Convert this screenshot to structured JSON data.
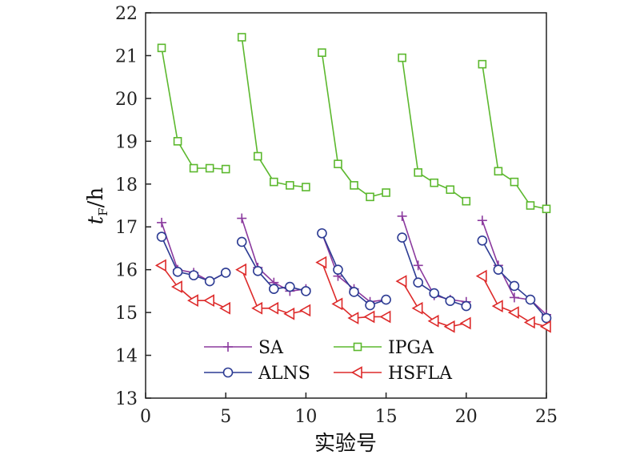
{
  "chart_data": {
    "type": "line",
    "xlabel": "实验号",
    "ylabel_main": "t",
    "ylabel_sub": "F",
    "ylabel_suffix": "/h",
    "xlim": [
      0,
      25
    ],
    "ylim": [
      13,
      22
    ],
    "xticks": [
      0,
      5,
      10,
      15,
      20,
      25
    ],
    "yticks": [
      13,
      14,
      15,
      16,
      17,
      18,
      19,
      20,
      21,
      22
    ],
    "grid": false,
    "legend_position": "bottom-center",
    "groups": [
      [
        1,
        2,
        3,
        4,
        5
      ],
      [
        6,
        7,
        8,
        9,
        10
      ],
      [
        11,
        12,
        13,
        14,
        15
      ],
      [
        16,
        17,
        18,
        19,
        20
      ],
      [
        21,
        22,
        23,
        24,
        25
      ]
    ],
    "series": [
      {
        "name": "SA",
        "color": "#8b3a9e",
        "marker": "plus",
        "x": [
          1,
          2,
          3,
          4,
          5,
          6,
          7,
          8,
          9,
          10,
          11,
          12,
          13,
          14,
          15,
          16,
          17,
          18,
          19,
          20,
          21,
          22,
          23,
          24,
          25
        ],
        "values": [
          17.1,
          16.0,
          15.93,
          15.73,
          15.93,
          17.2,
          16.05,
          15.7,
          15.5,
          15.55,
          16.85,
          15.85,
          15.55,
          15.25,
          15.3,
          17.25,
          16.1,
          15.4,
          15.3,
          15.25,
          17.15,
          16.1,
          15.35,
          15.3,
          14.95
        ]
      },
      {
        "name": "IPGA",
        "color": "#5cb82e",
        "marker": "square",
        "x": [
          1,
          2,
          3,
          4,
          5,
          6,
          7,
          8,
          9,
          10,
          11,
          12,
          13,
          14,
          15,
          16,
          17,
          18,
          19,
          20,
          21,
          22,
          23,
          24,
          25
        ],
        "values": [
          21.18,
          19.0,
          18.37,
          18.37,
          18.35,
          21.43,
          18.65,
          18.05,
          17.97,
          17.93,
          21.07,
          18.47,
          17.97,
          17.7,
          17.8,
          20.95,
          18.27,
          18.03,
          17.87,
          17.6,
          20.8,
          18.3,
          18.05,
          17.5,
          17.42
        ]
      },
      {
        "name": "ALNS",
        "color": "#2c3b93",
        "marker": "circle",
        "x": [
          1,
          2,
          3,
          4,
          5,
          6,
          7,
          8,
          9,
          10,
          11,
          12,
          13,
          14,
          15,
          16,
          17,
          18,
          19,
          20,
          21,
          22,
          23,
          24,
          25
        ],
        "values": [
          16.77,
          15.95,
          15.87,
          15.73,
          15.93,
          16.65,
          15.97,
          15.55,
          15.6,
          15.5,
          16.85,
          16.0,
          15.48,
          15.17,
          15.3,
          16.75,
          15.7,
          15.45,
          15.27,
          15.15,
          16.68,
          16.0,
          15.62,
          15.3,
          14.87
        ]
      },
      {
        "name": "HSFLA",
        "color": "#dd2a2a",
        "marker": "triangle-left",
        "x": [
          1,
          2,
          3,
          4,
          5,
          6,
          7,
          8,
          9,
          10,
          11,
          12,
          13,
          14,
          15,
          16,
          17,
          18,
          19,
          20,
          21,
          22,
          23,
          24,
          25
        ],
        "values": [
          16.1,
          15.6,
          15.28,
          15.28,
          15.1,
          16.0,
          15.1,
          15.1,
          14.97,
          15.05,
          16.17,
          15.2,
          14.87,
          14.9,
          14.9,
          15.73,
          15.1,
          14.8,
          14.67,
          14.75,
          15.85,
          15.15,
          15.0,
          14.77,
          14.67
        ]
      }
    ]
  }
}
